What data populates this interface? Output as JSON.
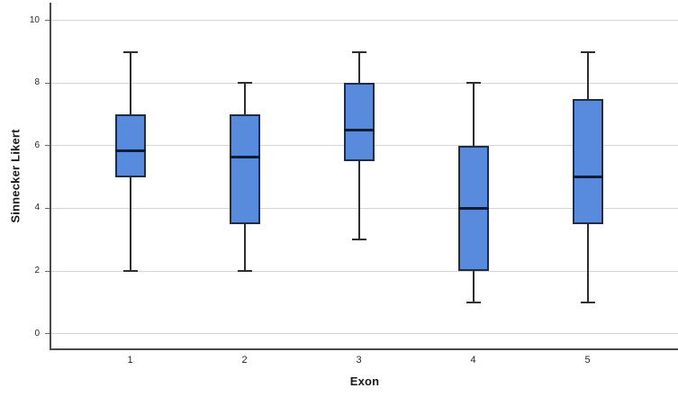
{
  "chart_data": {
    "type": "boxplot",
    "title": "",
    "xlabel": "Exon",
    "ylabel": "Sinnecker Likert",
    "categories": [
      "1",
      "2",
      "3",
      "4",
      "5"
    ],
    "y_ticks": [
      0,
      2,
      4,
      6,
      8,
      10
    ],
    "y_tick_labels": [
      "0",
      "2",
      "4",
      "6",
      "8",
      "10"
    ],
    "ylim": [
      -0.5,
      10.57
    ],
    "grid": "horizontal",
    "legend": "none",
    "boxes": [
      {
        "category": "1",
        "whisker_low": 2,
        "q1": 5,
        "median": 5.85,
        "q3": 7,
        "whisker_high": 9
      },
      {
        "category": "2",
        "whisker_low": 2,
        "q1": 3.5,
        "median": 5.65,
        "q3": 7,
        "whisker_high": 8
      },
      {
        "category": "3",
        "whisker_low": 3,
        "q1": 5.5,
        "median": 6.5,
        "q3": 8,
        "whisker_high": 9
      },
      {
        "category": "4",
        "whisker_low": 1,
        "q1": 2,
        "median": 4,
        "q3": 6,
        "whisker_high": 8
      },
      {
        "category": "5",
        "whisker_low": 1,
        "q1": 3.5,
        "median": 5,
        "q3": 7.5,
        "whisker_high": 9
      }
    ],
    "colors": {
      "box_fill": "#588bde",
      "box_border": "#1f2e43",
      "median": "#0c1c33",
      "whisker": "#2e2e2e",
      "gridline": "#d4d4d4",
      "axis": "#4a4a4a",
      "text": "#262626",
      "background": "#ffffff"
    }
  }
}
